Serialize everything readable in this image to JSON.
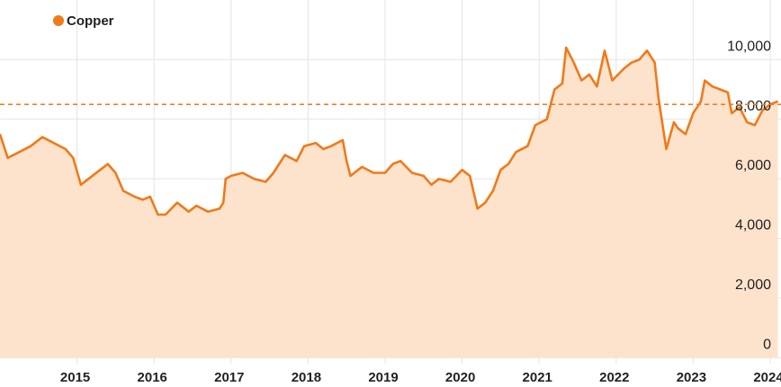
{
  "chart_data": {
    "type": "area",
    "x": [
      2014.0,
      2014.1,
      2014.25,
      2014.4,
      2014.55,
      2014.7,
      2014.85,
      2014.95,
      2015.05,
      2015.15,
      2015.3,
      2015.4,
      2015.5,
      2015.6,
      2015.75,
      2015.85,
      2015.95,
      2016.05,
      2016.15,
      2016.3,
      2016.45,
      2016.55,
      2016.7,
      2016.85,
      2016.9,
      2016.93,
      2017.0,
      2017.15,
      2017.3,
      2017.45,
      2017.55,
      2017.7,
      2017.85,
      2017.95,
      2018.1,
      2018.2,
      2018.3,
      2018.45,
      2018.5,
      2018.55,
      2018.7,
      2018.85,
      2019.0,
      2019.1,
      2019.2,
      2019.35,
      2019.5,
      2019.6,
      2019.7,
      2019.85,
      2020.0,
      2020.1,
      2020.2,
      2020.3,
      2020.4,
      2020.5,
      2020.6,
      2020.7,
      2020.85,
      2020.95,
      2021.1,
      2021.2,
      2021.3,
      2021.35,
      2021.45,
      2021.55,
      2021.65,
      2021.75,
      2021.85,
      2021.95,
      2022.1,
      2022.2,
      2022.3,
      2022.4,
      2022.5,
      2022.55,
      2022.65,
      2022.75,
      2022.8,
      2022.9,
      2023.0,
      2023.1,
      2023.15,
      2023.25,
      2023.35,
      2023.45,
      2023.5,
      2023.6,
      2023.7,
      2023.8,
      2023.9,
      2024.0,
      2024.1
    ],
    "series": [
      {
        "name": "Copper",
        "color": "#f07a1a",
        "fill": "#fde3cc",
        "values": [
          7500,
          6700,
          6900,
          7100,
          7400,
          7200,
          7000,
          6700,
          5800,
          6000,
          6300,
          6500,
          6200,
          5600,
          5400,
          5300,
          5400,
          4800,
          4800,
          5200,
          4900,
          5100,
          4900,
          5000,
          5200,
          6000,
          6100,
          6200,
          6000,
          5900,
          6200,
          6800,
          6600,
          7100,
          7200,
          7000,
          7100,
          7300,
          6600,
          6100,
          6400,
          6200,
          6200,
          6500,
          6600,
          6200,
          6100,
          5800,
          6000,
          5900,
          6300,
          6100,
          5000,
          5200,
          5600,
          6300,
          6500,
          6900,
          7100,
          7800,
          8000,
          9000,
          9200,
          10400,
          9900,
          9300,
          9500,
          9100,
          10300,
          9300,
          9700,
          9900,
          10000,
          10300,
          9900,
          8700,
          7000,
          7900,
          7700,
          7500,
          8200,
          8600,
          9300,
          9100,
          9000,
          8900,
          8200,
          8400,
          7900,
          7800,
          8300,
          8500,
          8600
        ]
      }
    ],
    "reference_line": 8500,
    "xlim": [
      2014,
      2024.14
    ],
    "xticks": [
      2015,
      2016,
      2017,
      2018,
      2019,
      2020,
      2021,
      2022,
      2023,
      2024
    ],
    "ylim": [
      -200,
      12000
    ],
    "yticks": [
      0,
      {
        "value": 2000,
        "label": "2,000"
      },
      {
        "value": 4000,
        "label": "4,000"
      },
      {
        "value": 6000,
        "label": "6,000"
      },
      {
        "value": 8000,
        "label": "8,000"
      },
      {
        "value": 10000,
        "label": "10,000"
      }
    ],
    "grid": true,
    "legend": "top-left"
  }
}
